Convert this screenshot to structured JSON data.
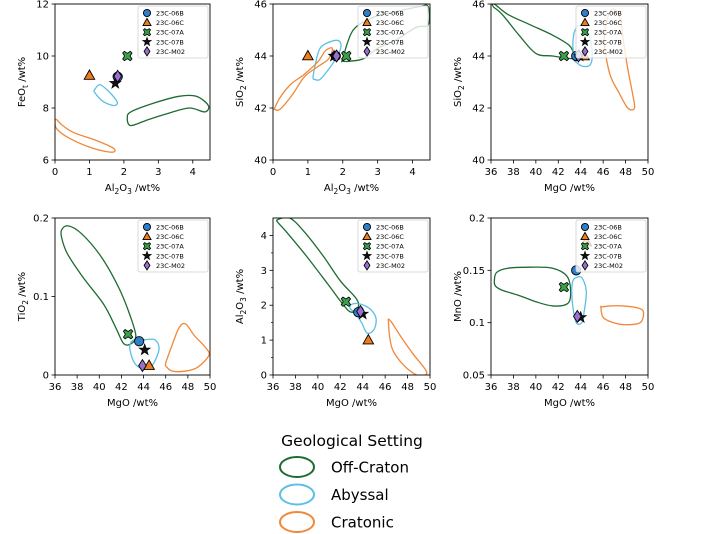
{
  "chart_data": [
    {
      "type": "scatter",
      "xlabel": "Al2O3 /wt%",
      "ylabel": "FeOt /wt%",
      "xlim": [
        0,
        4.5
      ],
      "ylim": [
        6,
        12
      ],
      "xticks": [
        "0",
        "1",
        "2",
        "3",
        "4"
      ],
      "yticks": [
        "6",
        "8",
        "10",
        "12"
      ],
      "legend": "top-right",
      "points": [
        {
          "sample": "23C-06B",
          "x": 1.82,
          "y": 9.2
        },
        {
          "sample": "23C-06C",
          "x": 1.0,
          "y": 9.25
        },
        {
          "sample": "23C-07A",
          "x": 2.1,
          "y": 10.0
        },
        {
          "sample": "23C-07B",
          "x": 1.75,
          "y": 8.95
        },
        {
          "sample": "23C-M02",
          "x": 1.82,
          "y": 9.22
        }
      ],
      "fields": {
        "Off-Craton": [
          [
            2.1,
            7.6
          ],
          [
            2.2,
            7.85
          ],
          [
            2.9,
            8.2
          ],
          [
            3.6,
            8.45
          ],
          [
            4.1,
            8.45
          ],
          [
            4.45,
            8.1
          ],
          [
            4.35,
            7.85
          ],
          [
            3.9,
            8.0
          ],
          [
            3.3,
            7.8
          ],
          [
            2.7,
            7.55
          ],
          [
            2.3,
            7.35
          ],
          [
            2.15,
            7.35
          ]
        ],
        "Abyssal": [
          [
            1.15,
            8.7
          ],
          [
            1.3,
            8.9
          ],
          [
            1.55,
            8.65
          ],
          [
            1.8,
            8.25
          ],
          [
            1.75,
            8.1
          ],
          [
            1.55,
            8.15
          ],
          [
            1.35,
            8.3
          ],
          [
            1.15,
            8.6
          ]
        ],
        "Cratonic": [
          [
            0.05,
            7.55
          ],
          [
            0.2,
            7.35
          ],
          [
            0.55,
            7.05
          ],
          [
            1.2,
            6.75
          ],
          [
            1.7,
            6.45
          ],
          [
            1.65,
            6.3
          ],
          [
            1.1,
            6.45
          ],
          [
            0.4,
            6.85
          ],
          [
            0.05,
            7.2
          ],
          [
            0.0,
            7.5
          ]
        ]
      }
    },
    {
      "type": "scatter",
      "xlabel": "Al2O3 /wt%",
      "ylabel": "SiO2 /wt%",
      "xlim": [
        0,
        4.5
      ],
      "ylim": [
        40,
        46
      ],
      "xticks": [
        "0",
        "1",
        "2",
        "3",
        "4"
      ],
      "yticks": [
        "40",
        "42",
        "44",
        "46"
      ],
      "legend": "top-right",
      "points": [
        {
          "sample": "23C-06B",
          "x": 1.8,
          "y": 44.0
        },
        {
          "sample": "23C-06C",
          "x": 1.0,
          "y": 44.0
        },
        {
          "sample": "23C-07A",
          "x": 2.1,
          "y": 44.0
        },
        {
          "sample": "23C-07B",
          "x": 1.75,
          "y": 44.0
        },
        {
          "sample": "23C-M02",
          "x": 1.82,
          "y": 44.0
        }
      ],
      "fields": {
        "Off-Craton": [
          [
            2.0,
            43.9
          ],
          [
            2.3,
            45.0
          ],
          [
            2.9,
            45.5
          ],
          [
            3.5,
            45.7
          ],
          [
            4.2,
            45.9
          ],
          [
            4.45,
            45.9
          ],
          [
            4.45,
            45.2
          ],
          [
            4.1,
            45.1
          ],
          [
            3.5,
            44.6
          ],
          [
            3.0,
            44.3
          ],
          [
            2.6,
            43.9
          ],
          [
            2.2,
            43.8
          ],
          [
            2.0,
            43.8
          ]
        ],
        "Abyssal": [
          [
            1.15,
            43.2
          ],
          [
            1.25,
            43.9
          ],
          [
            1.35,
            44.3
          ],
          [
            1.55,
            44.5
          ],
          [
            1.85,
            44.6
          ],
          [
            1.95,
            44.4
          ],
          [
            1.85,
            44.0
          ],
          [
            1.6,
            43.5
          ],
          [
            1.35,
            43.1
          ],
          [
            1.2,
            43.1
          ]
        ],
        "Cratonic": [
          [
            0.05,
            42.0
          ],
          [
            0.2,
            42.4
          ],
          [
            0.5,
            42.9
          ],
          [
            0.9,
            43.3
          ],
          [
            1.3,
            43.8
          ],
          [
            1.5,
            44.2
          ],
          [
            1.7,
            44.3
          ],
          [
            1.6,
            43.9
          ],
          [
            1.3,
            43.6
          ],
          [
            0.9,
            43.2
          ],
          [
            0.55,
            42.5
          ],
          [
            0.2,
            41.95
          ],
          [
            0.05,
            41.95
          ]
        ]
      }
    },
    {
      "type": "scatter",
      "xlabel": "MgO /wt%",
      "ylabel": "SiO2 /wt%",
      "xlim": [
        36,
        50
      ],
      "ylim": [
        40,
        46
      ],
      "xticks": [
        "36",
        "38",
        "40",
        "42",
        "44",
        "46",
        "48",
        "50"
      ],
      "yticks": [
        "40",
        "42",
        "44",
        "46"
      ],
      "legend": "top-right",
      "points": [
        {
          "sample": "23C-06B",
          "x": 43.6,
          "y": 44.0
        },
        {
          "sample": "23C-06C",
          "x": 44.3,
          "y": 44.0
        },
        {
          "sample": "23C-07A",
          "x": 42.5,
          "y": 44.0
        },
        {
          "sample": "23C-07B",
          "x": 43.9,
          "y": 44.0
        },
        {
          "sample": "23C-M02",
          "x": 43.8,
          "y": 44.0
        }
      ],
      "fields": {
        "Off-Craton": [
          [
            36.3,
            46.0
          ],
          [
            37.5,
            45.6
          ],
          [
            39.5,
            45.2
          ],
          [
            41.5,
            44.8
          ],
          [
            43.0,
            44.4
          ],
          [
            43.4,
            44.0
          ],
          [
            43.2,
            43.9
          ],
          [
            41.5,
            44.0
          ],
          [
            40.0,
            44.1
          ],
          [
            38.5,
            44.8
          ],
          [
            37.0,
            45.6
          ],
          [
            36.2,
            45.9
          ]
        ],
        "Abyssal": [
          [
            43.5,
            43.8
          ],
          [
            44.2,
            43.6
          ],
          [
            44.9,
            43.7
          ],
          [
            45.0,
            44.3
          ],
          [
            44.6,
            45.0
          ],
          [
            44.0,
            45.2
          ],
          [
            43.5,
            45.0
          ],
          [
            43.3,
            44.5
          ],
          [
            43.4,
            43.9
          ]
        ],
        "Cratonic": [
          [
            46.1,
            44.5
          ],
          [
            46.6,
            43.3
          ],
          [
            47.4,
            42.6
          ],
          [
            48.2,
            42.0
          ],
          [
            48.8,
            42.0
          ],
          [
            48.6,
            42.6
          ],
          [
            48.2,
            43.5
          ],
          [
            47.8,
            44.6
          ],
          [
            47.5,
            45.5
          ],
          [
            46.8,
            45.8
          ],
          [
            46.3,
            45.3
          ]
        ]
      }
    },
    {
      "type": "scatter",
      "xlabel": "MgO /wt%",
      "ylabel": "TiO2 /wt%",
      "xlim": [
        36,
        50
      ],
      "ylim": [
        0,
        0.2
      ],
      "xticks": [
        "36",
        "38",
        "40",
        "42",
        "44",
        "46",
        "48",
        "50"
      ],
      "yticks": [
        "0",
        "0.1",
        "0.2"
      ],
      "legend": "top-right",
      "points": [
        {
          "sample": "23C-06B",
          "x": 43.6,
          "y": 0.043
        },
        {
          "sample": "23C-06C",
          "x": 44.5,
          "y": 0.012
        },
        {
          "sample": "23C-07A",
          "x": 42.6,
          "y": 0.052
        },
        {
          "sample": "23C-07B",
          "x": 44.1,
          "y": 0.032
        },
        {
          "sample": "23C-M02",
          "x": 43.9,
          "y": 0.012
        }
      ],
      "fields": {
        "Off-Craton": [
          [
            36.6,
            0.185
          ],
          [
            37.2,
            0.19
          ],
          [
            38.4,
            0.18
          ],
          [
            40.2,
            0.15
          ],
          [
            41.8,
            0.11
          ],
          [
            42.8,
            0.075
          ],
          [
            43.3,
            0.05
          ],
          [
            42.9,
            0.04
          ],
          [
            42.2,
            0.04
          ],
          [
            41.5,
            0.06
          ],
          [
            40.4,
            0.09
          ],
          [
            38.5,
            0.125
          ],
          [
            37.1,
            0.155
          ],
          [
            36.6,
            0.175
          ]
        ],
        "Abyssal": [
          [
            42.8,
            0.03
          ],
          [
            43.2,
            0.015
          ],
          [
            43.9,
            0.008
          ],
          [
            44.6,
            0.01
          ],
          [
            45.1,
            0.02
          ],
          [
            45.4,
            0.035
          ],
          [
            45.0,
            0.045
          ],
          [
            44.1,
            0.045
          ],
          [
            43.2,
            0.045
          ],
          [
            42.8,
            0.04
          ]
        ],
        "Cratonic": [
          [
            46.1,
            0.01
          ],
          [
            46.6,
            0.005
          ],
          [
            47.8,
            0.005
          ],
          [
            48.9,
            0.01
          ],
          [
            49.9,
            0.025
          ],
          [
            49.6,
            0.035
          ],
          [
            48.6,
            0.05
          ],
          [
            47.8,
            0.065
          ],
          [
            47.2,
            0.06
          ],
          [
            46.5,
            0.035
          ],
          [
            46.0,
            0.015
          ]
        ]
      }
    },
    {
      "type": "scatter",
      "xlabel": "MgO /wt%",
      "ylabel": "Al2O3 /wt%",
      "xlim": [
        36,
        50
      ],
      "ylim": [
        0,
        4.5
      ],
      "xticks": [
        "36",
        "38",
        "40",
        "42",
        "44",
        "46",
        "48",
        "50"
      ],
      "yticks": [
        "0",
        "1",
        "2",
        "3",
        "4"
      ],
      "legend": "top-right",
      "points": [
        {
          "sample": "23C-06B",
          "x": 43.6,
          "y": 1.8
        },
        {
          "sample": "23C-06C",
          "x": 44.5,
          "y": 1.0
        },
        {
          "sample": "23C-07A",
          "x": 42.5,
          "y": 2.1
        },
        {
          "sample": "23C-07B",
          "x": 44.0,
          "y": 1.75
        },
        {
          "sample": "23C-M02",
          "x": 43.8,
          "y": 1.82
        }
      ],
      "fields": {
        "Off-Craton": [
          [
            36.4,
            4.45
          ],
          [
            37.5,
            4.5
          ],
          [
            38.8,
            4.1
          ],
          [
            40.5,
            3.4
          ],
          [
            42.0,
            2.7
          ],
          [
            43.4,
            2.2
          ],
          [
            43.6,
            1.95
          ],
          [
            43.0,
            1.8
          ],
          [
            42.3,
            2.0
          ],
          [
            40.9,
            2.6
          ],
          [
            39.0,
            3.4
          ],
          [
            37.2,
            4.1
          ],
          [
            36.5,
            4.35
          ]
        ],
        "Abyssal": [
          [
            42.9,
            1.9
          ],
          [
            43.4,
            1.75
          ],
          [
            43.9,
            1.5
          ],
          [
            44.4,
            1.2
          ],
          [
            45.0,
            1.3
          ],
          [
            45.2,
            1.6
          ],
          [
            44.8,
            1.85
          ],
          [
            44.1,
            2.0
          ],
          [
            43.4,
            2.05
          ],
          [
            42.9,
            2.0
          ]
        ],
        "Cratonic": [
          [
            46.3,
            1.6
          ],
          [
            46.6,
            1.5
          ],
          [
            47.4,
            1.1
          ],
          [
            48.5,
            0.6
          ],
          [
            49.6,
            0.15
          ],
          [
            49.6,
            0.0
          ],
          [
            48.8,
            0.0
          ],
          [
            47.6,
            0.3
          ],
          [
            46.7,
            0.7
          ],
          [
            46.4,
            1.1
          ],
          [
            46.3,
            1.5
          ]
        ]
      }
    },
    {
      "type": "scatter",
      "xlabel": "MgO /wt%",
      "ylabel": "MnO /wt%",
      "xlim": [
        36,
        50
      ],
      "ylim": [
        0.05,
        0.2
      ],
      "xticks": [
        "36",
        "38",
        "40",
        "42",
        "44",
        "46",
        "48",
        "50"
      ],
      "yticks": [
        "0.05",
        "0.1",
        "0.15",
        "0.2"
      ],
      "legend": "top-right",
      "points": [
        {
          "sample": "23C-06B",
          "x": 43.6,
          "y": 0.15
        },
        {
          "sample": "23C-06C",
          "x": 44.5,
          "y": 0.177
        },
        {
          "sample": "23C-07A",
          "x": 42.5,
          "y": 0.134
        },
        {
          "sample": "23C-07B",
          "x": 44.0,
          "y": 0.105
        },
        {
          "sample": "23C-M02",
          "x": 43.7,
          "y": 0.106
        }
      ],
      "fields": {
        "Off-Craton": [
          [
            36.3,
            0.14
          ],
          [
            36.5,
            0.148
          ],
          [
            37.5,
            0.152
          ],
          [
            39.5,
            0.153
          ],
          [
            41.5,
            0.152
          ],
          [
            42.8,
            0.144
          ],
          [
            43.1,
            0.128
          ],
          [
            42.8,
            0.118
          ],
          [
            41.5,
            0.116
          ],
          [
            40.0,
            0.12
          ],
          [
            38.5,
            0.126
          ],
          [
            37.0,
            0.131
          ],
          [
            36.4,
            0.135
          ]
        ],
        "Abyssal": [
          [
            43.3,
            0.14
          ],
          [
            43.6,
            0.143
          ],
          [
            44.1,
            0.143
          ],
          [
            44.5,
            0.13
          ],
          [
            44.3,
            0.11
          ],
          [
            44.1,
            0.1
          ],
          [
            43.6,
            0.1
          ],
          [
            43.3,
            0.115
          ],
          [
            43.2,
            0.13
          ]
        ],
        "Cratonic": [
          [
            45.8,
            0.115
          ],
          [
            46.0,
            0.105
          ],
          [
            46.9,
            0.1
          ],
          [
            48.0,
            0.098
          ],
          [
            49.3,
            0.1
          ],
          [
            49.6,
            0.11
          ],
          [
            49.1,
            0.114
          ],
          [
            47.8,
            0.116
          ],
          [
            46.6,
            0.116
          ],
          [
            45.9,
            0.115
          ]
        ]
      }
    }
  ],
  "legend_samples": [
    {
      "label": "23C-06B",
      "marker": "circle",
      "color": "#2e7ec8"
    },
    {
      "label": "23C-06C",
      "marker": "triangle",
      "color": "#f07d1a"
    },
    {
      "label": "23C-07A",
      "marker": "cross",
      "color": "#3aa04a"
    },
    {
      "label": "23C-07B",
      "marker": "star",
      "color": "#111111"
    },
    {
      "label": "23C-M02",
      "marker": "diamond",
      "color": "#9b6fcf"
    }
  ],
  "settings_legend": {
    "title": "Geological Setting",
    "items": [
      {
        "label": "Off-Craton",
        "color": "#1e6b32"
      },
      {
        "label": "Abyssal",
        "color": "#5bbfe6"
      },
      {
        "label": "Cratonic",
        "color": "#f0883a"
      }
    ]
  }
}
